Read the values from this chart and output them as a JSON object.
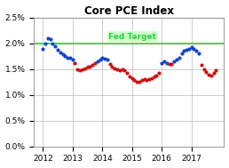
{
  "title": "Core PCE Index",
  "fed_target": 2.0,
  "fed_target_label": "Fed Target",
  "xlim": [
    2011.7,
    2018.1
  ],
  "ylim": [
    0.0,
    2.5
  ],
  "yticks": [
    0.0,
    0.5,
    1.0,
    1.5,
    2.0,
    2.5
  ],
  "ytick_labels": [
    "0.0%",
    "0.5%",
    "1.0%",
    "1.5%",
    "2.0%",
    "2.5%"
  ],
  "xticks": [
    2012,
    2013,
    2014,
    2015,
    2016,
    2017
  ],
  "green_line_color": "#2ECC40",
  "fed_target_bg": "#CCFFCC",
  "blue_color": "#1144CC",
  "red_color": "#CC1111",
  "marker_size": 3.0,
  "data": [
    {
      "date": 2012.0,
      "value": 1.9,
      "blue": true
    },
    {
      "date": 2012.08,
      "value": 2.0,
      "blue": true
    },
    {
      "date": 2012.17,
      "value": 2.1,
      "blue": true
    },
    {
      "date": 2012.25,
      "value": 2.08,
      "blue": true
    },
    {
      "date": 2012.33,
      "value": 2.0,
      "blue": true
    },
    {
      "date": 2012.42,
      "value": 1.95,
      "blue": true
    },
    {
      "date": 2012.5,
      "value": 1.88,
      "blue": true
    },
    {
      "date": 2012.58,
      "value": 1.82,
      "blue": true
    },
    {
      "date": 2012.67,
      "value": 1.78,
      "blue": true
    },
    {
      "date": 2012.75,
      "value": 1.75,
      "blue": true
    },
    {
      "date": 2012.83,
      "value": 1.72,
      "blue": true
    },
    {
      "date": 2012.92,
      "value": 1.72,
      "blue": true
    },
    {
      "date": 2013.0,
      "value": 1.68,
      "blue": true
    },
    {
      "date": 2013.08,
      "value": 1.62,
      "blue": false
    },
    {
      "date": 2013.17,
      "value": 1.5,
      "blue": false
    },
    {
      "date": 2013.25,
      "value": 1.48,
      "blue": false
    },
    {
      "date": 2013.33,
      "value": 1.5,
      "blue": false
    },
    {
      "date": 2013.42,
      "value": 1.52,
      "blue": false
    },
    {
      "date": 2013.5,
      "value": 1.55,
      "blue": false
    },
    {
      "date": 2013.58,
      "value": 1.55,
      "blue": false
    },
    {
      "date": 2013.67,
      "value": 1.58,
      "blue": false
    },
    {
      "date": 2013.75,
      "value": 1.62,
      "blue": false
    },
    {
      "date": 2013.83,
      "value": 1.65,
      "blue": true
    },
    {
      "date": 2013.92,
      "value": 1.68,
      "blue": true
    },
    {
      "date": 2014.0,
      "value": 1.72,
      "blue": true
    },
    {
      "date": 2014.08,
      "value": 1.7,
      "blue": true
    },
    {
      "date": 2014.17,
      "value": 1.68,
      "blue": true
    },
    {
      "date": 2014.25,
      "value": 1.6,
      "blue": false
    },
    {
      "date": 2014.33,
      "value": 1.55,
      "blue": false
    },
    {
      "date": 2014.42,
      "value": 1.52,
      "blue": false
    },
    {
      "date": 2014.5,
      "value": 1.5,
      "blue": false
    },
    {
      "date": 2014.58,
      "value": 1.48,
      "blue": false
    },
    {
      "date": 2014.67,
      "value": 1.5,
      "blue": false
    },
    {
      "date": 2014.75,
      "value": 1.48,
      "blue": false
    },
    {
      "date": 2014.83,
      "value": 1.42,
      "blue": false
    },
    {
      "date": 2014.92,
      "value": 1.35,
      "blue": false
    },
    {
      "date": 2015.0,
      "value": 1.32,
      "blue": false
    },
    {
      "date": 2015.08,
      "value": 1.28,
      "blue": false
    },
    {
      "date": 2015.17,
      "value": 1.25,
      "blue": false
    },
    {
      "date": 2015.25,
      "value": 1.25,
      "blue": false
    },
    {
      "date": 2015.33,
      "value": 1.28,
      "blue": false
    },
    {
      "date": 2015.42,
      "value": 1.3,
      "blue": false
    },
    {
      "date": 2015.5,
      "value": 1.28,
      "blue": false
    },
    {
      "date": 2015.58,
      "value": 1.3,
      "blue": false
    },
    {
      "date": 2015.67,
      "value": 1.32,
      "blue": false
    },
    {
      "date": 2015.75,
      "value": 1.35,
      "blue": false
    },
    {
      "date": 2015.83,
      "value": 1.38,
      "blue": false
    },
    {
      "date": 2015.92,
      "value": 1.42,
      "blue": false
    },
    {
      "date": 2016.0,
      "value": 1.62,
      "blue": true
    },
    {
      "date": 2016.08,
      "value": 1.65,
      "blue": true
    },
    {
      "date": 2016.17,
      "value": 1.62,
      "blue": true
    },
    {
      "date": 2016.25,
      "value": 1.6,
      "blue": false
    },
    {
      "date": 2016.33,
      "value": 1.6,
      "blue": false
    },
    {
      "date": 2016.42,
      "value": 1.65,
      "blue": true
    },
    {
      "date": 2016.5,
      "value": 1.68,
      "blue": true
    },
    {
      "date": 2016.58,
      "value": 1.72,
      "blue": true
    },
    {
      "date": 2016.67,
      "value": 1.8,
      "blue": true
    },
    {
      "date": 2016.75,
      "value": 1.85,
      "blue": true
    },
    {
      "date": 2016.83,
      "value": 1.88,
      "blue": true
    },
    {
      "date": 2016.92,
      "value": 1.9,
      "blue": true
    },
    {
      "date": 2017.0,
      "value": 1.92,
      "blue": true
    },
    {
      "date": 2017.08,
      "value": 1.9,
      "blue": true
    },
    {
      "date": 2017.17,
      "value": 1.85,
      "blue": true
    },
    {
      "date": 2017.25,
      "value": 1.8,
      "blue": true
    },
    {
      "date": 2017.33,
      "value": 1.58,
      "blue": false
    },
    {
      "date": 2017.42,
      "value": 1.5,
      "blue": false
    },
    {
      "date": 2017.5,
      "value": 1.45,
      "blue": false
    },
    {
      "date": 2017.58,
      "value": 1.4,
      "blue": false
    },
    {
      "date": 2017.67,
      "value": 1.38,
      "blue": false
    },
    {
      "date": 2017.75,
      "value": 1.42,
      "blue": false
    },
    {
      "date": 2017.83,
      "value": 1.48,
      "blue": false
    }
  ],
  "background_color": "#FFFFFF",
  "grid_color": "#BBBBBB",
  "spine_color": "#888888"
}
